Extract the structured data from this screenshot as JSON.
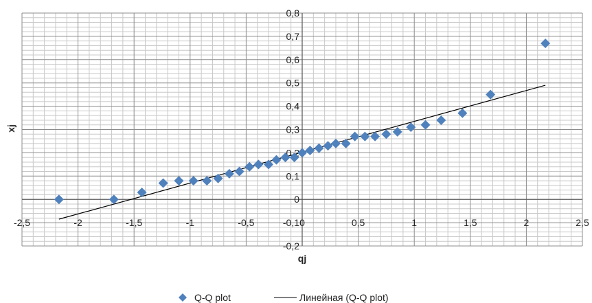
{
  "chart_data": {
    "type": "scatter",
    "xlabel": "qj",
    "ylabel": "xj",
    "xlim": [
      -2.5,
      2.5
    ],
    "ylim": [
      -0.2,
      0.8
    ],
    "x_major_step": 0.5,
    "y_major_step": 0.1,
    "grid": true,
    "legend_position": "bottom",
    "x_tick_labels": [
      "-2,5",
      "-2",
      "-1,5",
      "-1",
      "-0,5",
      "0",
      "0,5",
      "1",
      "1,5",
      "2",
      "2,5"
    ],
    "y_tick_labels": [
      "-0,2",
      "-0,1",
      "0",
      "0,1",
      "0,2",
      "0,3",
      "0,4",
      "0,5",
      "0,6",
      "0,7",
      "0,8"
    ],
    "series": [
      {
        "name": "Q-Q plot",
        "marker": "diamond",
        "color": "#4f81bd",
        "x": [
          -2.17,
          -1.68,
          -1.43,
          -1.24,
          -1.1,
          -0.97,
          -0.85,
          -0.75,
          -0.65,
          -0.56,
          -0.47,
          -0.39,
          -0.3,
          -0.23,
          -0.15,
          -0.07,
          0.0,
          0.07,
          0.15,
          0.23,
          0.3,
          0.39,
          0.47,
          0.56,
          0.65,
          0.75,
          0.85,
          0.97,
          1.1,
          1.24,
          1.43,
          1.68,
          2.17
        ],
        "y": [
          0.0,
          0.0,
          0.03,
          0.07,
          0.08,
          0.08,
          0.08,
          0.09,
          0.11,
          0.12,
          0.14,
          0.15,
          0.15,
          0.17,
          0.18,
          0.18,
          0.2,
          0.21,
          0.22,
          0.23,
          0.24,
          0.24,
          0.27,
          0.27,
          0.27,
          0.28,
          0.29,
          0.31,
          0.32,
          0.34,
          0.37,
          0.45,
          0.67
        ]
      },
      {
        "name": "Линейная (Q-Q plot)",
        "type": "line",
        "color": "#000000",
        "x": [
          -2.17,
          2.17
        ],
        "y": [
          -0.085,
          0.49
        ]
      }
    ]
  }
}
